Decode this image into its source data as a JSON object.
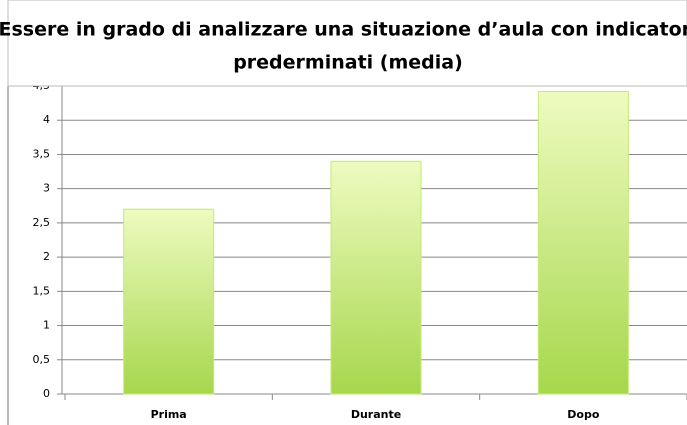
{
  "chart_data": {
    "type": "bar",
    "title": [
      "Essere in grado di analizzare una situazione d’aula con indicatori",
      "prederminati  (media)"
    ],
    "categories": [
      "Prima",
      "Durante",
      "Dopo"
    ],
    "values": [
      2.7,
      3.4,
      4.42
    ],
    "color": "#c3eb72",
    "ylim": [
      0,
      4.5
    ],
    "yticks": [
      0,
      {
        "value": 0.5,
        "label": "0,5"
      },
      1,
      {
        "value": 1.5,
        "label": "1,5"
      },
      2,
      {
        "value": 2.5,
        "label": "2,5"
      },
      3,
      {
        "value": 3.5,
        "label": "3,5"
      },
      4,
      {
        "value": 4.5,
        "label": "4,5"
      }
    ],
    "grid": true
  }
}
